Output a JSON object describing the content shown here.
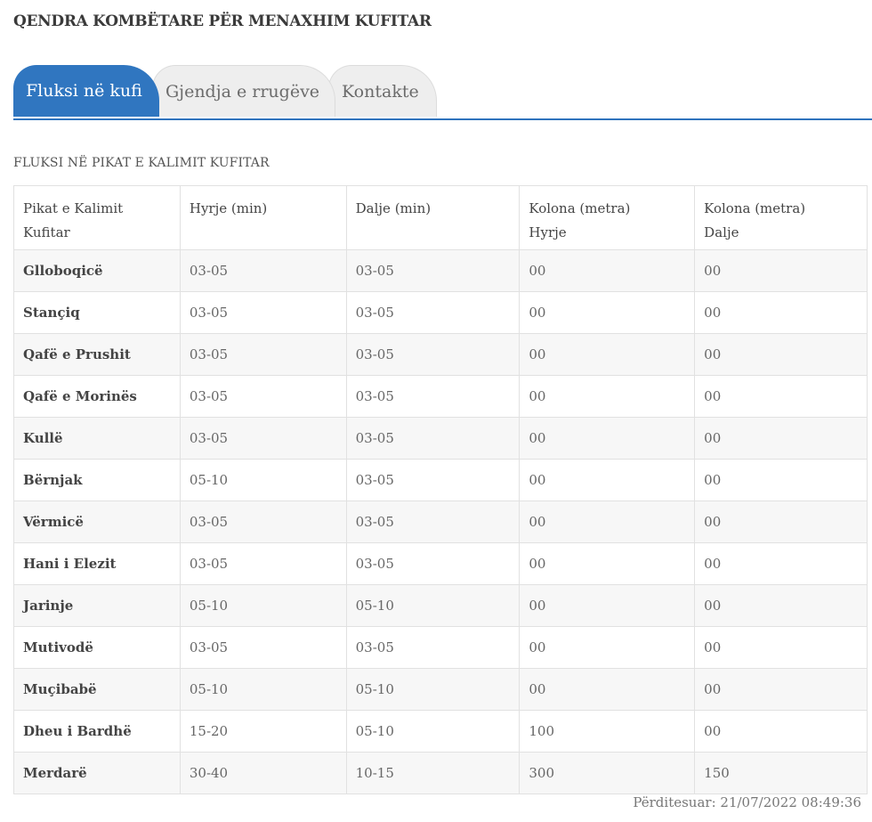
{
  "header": {
    "title": "QENDRA KOMBËTARE PËR MENAXHIM KUFITAR"
  },
  "tabs": [
    {
      "label": "Fluksi në kufi",
      "active": true
    },
    {
      "label": "Gjendja e rrugëve",
      "active": false
    },
    {
      "label": "Kontakte",
      "active": false
    }
  ],
  "section": {
    "title": "FLUKSI NË PIKAT E KALIMIT KUFITAR"
  },
  "table": {
    "headers": [
      [
        "Pikat e Kalimit",
        "Kufitar"
      ],
      [
        "Hyrje (min)"
      ],
      [
        "Dalje (min)"
      ],
      [
        "Kolona (metra)",
        "Hyrje"
      ],
      [
        "Kolona (metra)",
        "Dalje"
      ]
    ],
    "rows": [
      [
        "Glloboqicë",
        "03-05",
        "03-05",
        "00",
        "00"
      ],
      [
        "Stançiq",
        "03-05",
        "03-05",
        "00",
        "00"
      ],
      [
        "Qafë e Prushit",
        "03-05",
        "03-05",
        "00",
        "00"
      ],
      [
        "Qafë e Morinës",
        "03-05",
        "03-05",
        "00",
        "00"
      ],
      [
        "Kullë",
        "03-05",
        "03-05",
        "00",
        "00"
      ],
      [
        "Bërnjak",
        "05-10",
        "03-05",
        "00",
        "00"
      ],
      [
        "Vërmicë",
        "03-05",
        "03-05",
        "00",
        "00"
      ],
      [
        "Hani i Elezit",
        "03-05",
        "03-05",
        "00",
        "00"
      ],
      [
        "Jarinje",
        "05-10",
        "05-10",
        "00",
        "00"
      ],
      [
        "Mutivodë",
        "03-05",
        "03-05",
        "00",
        "00"
      ],
      [
        "Muçibabë",
        "05-10",
        "05-10",
        "00",
        "00"
      ],
      [
        "Dheu i Bardhë",
        "15-20",
        "05-10",
        "100",
        "00"
      ],
      [
        "Merdarë",
        "30-40",
        "10-15",
        "300",
        "150"
      ]
    ]
  },
  "footer": {
    "updated": "Përditesuar: 21/07/2022 08:49:36"
  },
  "colors": {
    "accent": "#3076c0",
    "tab_inactive": "#eeeeee",
    "row_alt": "#f7f7f7"
  }
}
